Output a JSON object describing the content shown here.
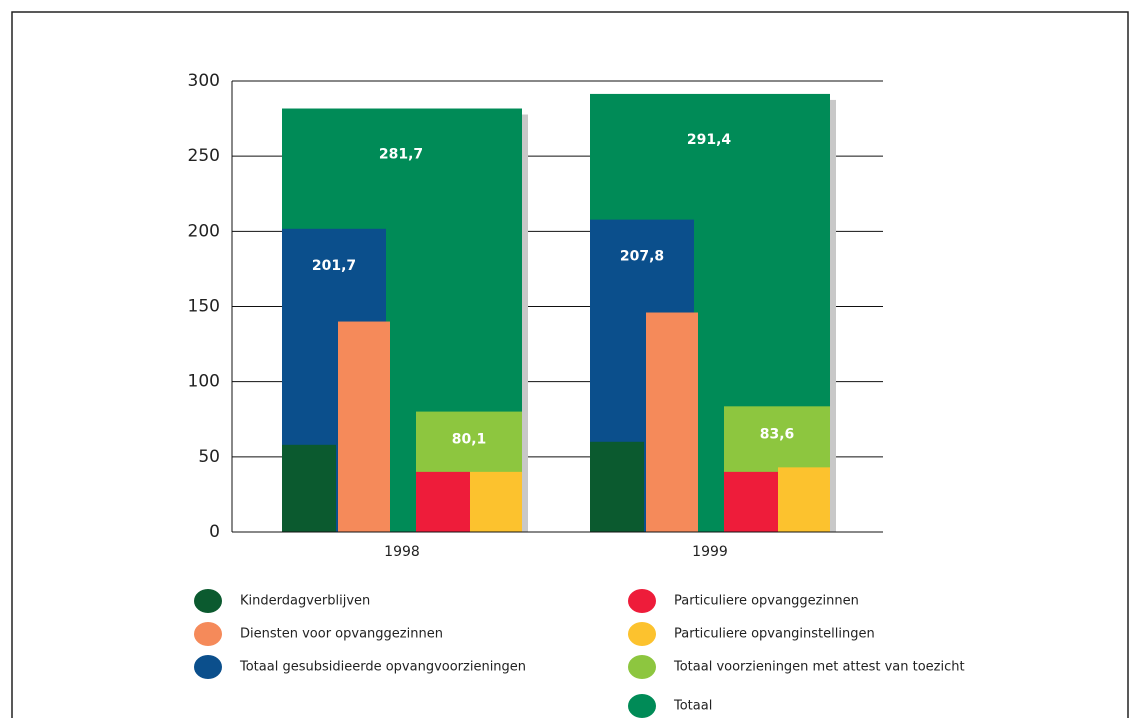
{
  "chart_data": {
    "type": "bar",
    "categories": [
      "1998",
      "1999"
    ],
    "ylim": [
      0,
      300
    ],
    "yticks": [
      0,
      50,
      100,
      150,
      200,
      250,
      300
    ],
    "grid": true,
    "series": [
      {
        "name": "Kinderdagverblijven",
        "color": "#0b5a2f",
        "values": [
          58,
          60
        ]
      },
      {
        "name": "Diensten voor opvanggezinnen",
        "color": "#f58a5a",
        "values": [
          140,
          146
        ]
      },
      {
        "name": "Totaal gesubsidieerde opvangvoorzieningen",
        "color": "#0b4f8c",
        "values": [
          201.7,
          207.8
        ],
        "value_labels": [
          "201,7",
          "207,8"
        ]
      },
      {
        "name": "Particuliere opvanggezinnen",
        "color": "#ee1c3a",
        "values": [
          40,
          40
        ]
      },
      {
        "name": "Particuliere opvanginstellingen",
        "color": "#fcc22e",
        "values": [
          40,
          43
        ]
      },
      {
        "name": "Totaal voorzieningen met attest van toezicht",
        "color": "#8dc63f",
        "values": [
          80.1,
          83.6
        ],
        "value_labels": [
          "80,1",
          "83,6"
        ]
      },
      {
        "name": "Totaal",
        "color": "#008b57",
        "values": [
          281.7,
          291.4
        ],
        "value_labels": [
          "281,7",
          "291,4"
        ]
      }
    ]
  }
}
